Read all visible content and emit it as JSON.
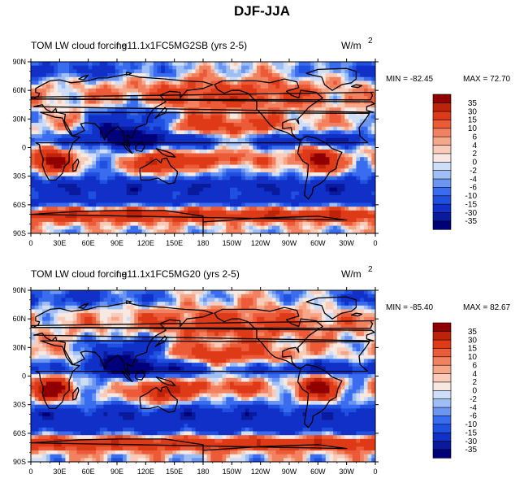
{
  "title": "DJF-JJA",
  "chart_data": {
    "type": "heatmap",
    "colorbar": {
      "levels": [
        "-35",
        "-30",
        "-15",
        "-10",
        "-6",
        "-4",
        "-2",
        "0",
        "2",
        "4",
        "6",
        "10",
        "15",
        "30",
        "35"
      ],
      "colors": [
        "#00007a",
        "#0a1a9c",
        "#1030c8",
        "#1f50e0",
        "#3a6cf0",
        "#6a96f2",
        "#9fbef6",
        "#cfdef8",
        "#f7e8e2",
        "#f9cbb8",
        "#f6a78a",
        "#f28160",
        "#ec5a38",
        "#de3a18",
        "#be2208",
        "#900000"
      ]
    },
    "panels": [
      {
        "id": "top",
        "title": "TOM LW cloud forcing",
        "case": "f.e11.1x1FC5MG2SB (yrs 2-5)",
        "units_base": "W/m",
        "units_exp": "2",
        "min_label": "MIN = -82.45",
        "max_label": "MAX =  72.70",
        "min": -82.45,
        "max": 72.7,
        "seed": 1.3
      },
      {
        "id": "bottom",
        "title": "TOM LW cloud forcing",
        "case": "f.e11.1x1FC5MG20 (yrs 2-5)",
        "units_base": "W/m",
        "units_exp": "2",
        "min_label": "MIN = -85.40",
        "max_label": "MAX =  82.67",
        "min": -85.4,
        "max": 82.67,
        "seed": 2.7
      }
    ],
    "x_ticks": [
      "0",
      "30E",
      "60E",
      "90E",
      "120E",
      "150E",
      "180",
      "150W",
      "120W",
      "90W",
      "60W",
      "30W",
      "0"
    ],
    "y_ticks": [
      "90N",
      "60N",
      "30N",
      "0",
      "30S",
      "60S",
      "90S"
    ]
  }
}
